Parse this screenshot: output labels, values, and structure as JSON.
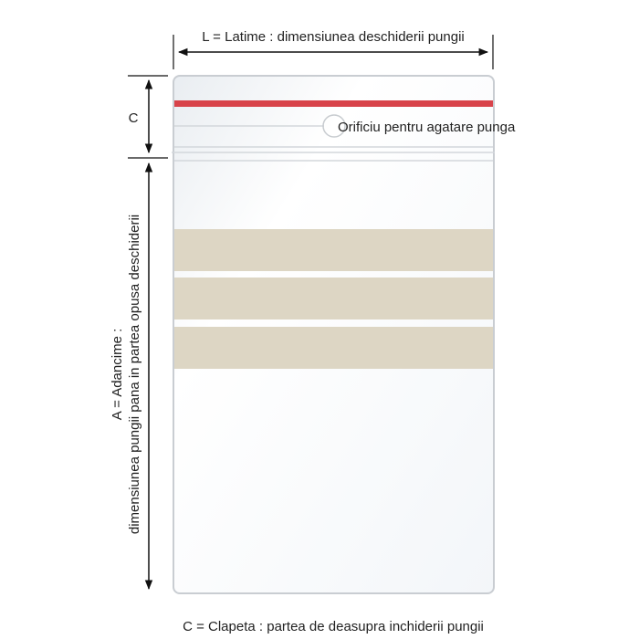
{
  "labels": {
    "width": "L = Latime : dimensiunea deschiderii pungii",
    "flap_marker": "C",
    "hang_hole": "Orificiu pentru agatare punga",
    "depth_line1": "A = Adancime :",
    "depth_line2": "dimensiunea pungii pana in partea opusa deschiderii",
    "footer": "C = Clapeta : partea de deasupra inchiderii pungii"
  },
  "colors": {
    "seal_line": "#d8434a",
    "write_on_strip": "#ddd6c4",
    "bag_outline": "#c9cdd2",
    "arrow": "#111111"
  }
}
